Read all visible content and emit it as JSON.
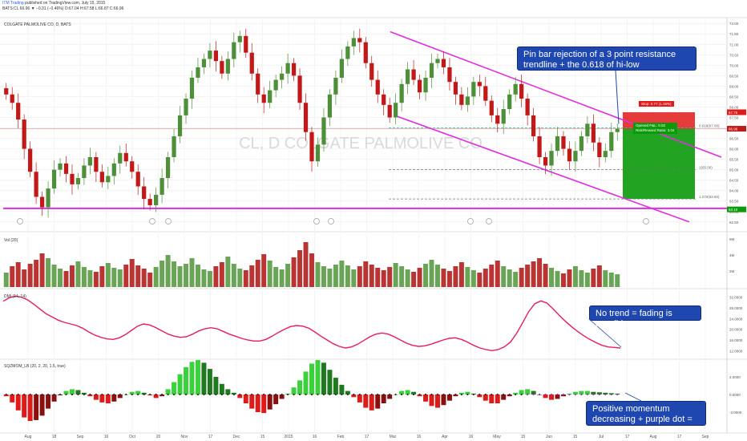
{
  "header": {
    "brand": "ITM Trading",
    "published": "published on TradingView.com, July 15, 2015",
    "quote": "BATS:CL 66.96 ▼ −0.31 (−0.46%) O:67.04 H:67.58 L:66.87 C:66.96"
  },
  "price_panel": {
    "title": "COLGATE PALMOLIVE CO, D, BATS",
    "watermark": "CL, D  COLGATE PALMOLIVE CO"
  },
  "volume_panel": {
    "title": "Vol (20)"
  },
  "dmi_panel": {
    "title": "DMI (14, 14)"
  },
  "sqz_panel": {
    "title": "SQZMOM_LB (20, 2, 20, 1.5, true)"
  },
  "callouts": {
    "pin_bar": "Pin bar rejection of a 3 point resistance trendline + the 0.618 of hi-low",
    "no_trend": "No trend = fading is possible",
    "momentum": "Positive momentum decreasing + purple dot = squeeze"
  },
  "position_tool": {
    "stop": "Stop: 0.77 (1.15%)",
    "opened": "Opened P&L: 0.02",
    "ratio": "Risk/Reward Ratio: 3.04"
  },
  "fib_labels": [
    "0.618(67.00)",
    "1(65.00)",
    "1.272(63.60)"
  ],
  "price_badges": [
    "67.75",
    "66.96",
    "63.10"
  ],
  "colors": {
    "up": "#4e8f3a",
    "down": "#c21818",
    "magenta": "#e02ee0",
    "dmi": "#e81c5a",
    "callout": "#1f47b0",
    "target": "#0a9a0a",
    "stop": "#e01919"
  },
  "chart_data": [
    {
      "type": "candlestick",
      "title": "COLGATE PALMOLIVE CO, D, BATS",
      "x_tick_labels": [
        "Aug",
        "18",
        "Sep",
        "16",
        "Oct",
        "20",
        "Nov",
        "17",
        "Dec",
        "15",
        "2015",
        "16",
        "Feb",
        "17",
        "Mar",
        "16",
        "Apr",
        "16",
        "May",
        "15",
        "Jun",
        "15",
        "Jul",
        "17",
        "Aug",
        "17",
        "Sep"
      ],
      "y_tick_labels": [
        "72.00",
        "71.50",
        "71.00",
        "70.50",
        "70.00",
        "69.50",
        "69.00",
        "68.50",
        "68.00",
        "67.50",
        "67.00",
        "66.50",
        "66.00",
        "65.50",
        "65.00",
        "64.50",
        "64.00",
        "63.50",
        "63.00",
        "62.50"
      ],
      "ylim": [
        62.3,
        72.2
      ],
      "closes": [
        68.6,
        68.2,
        67.4,
        66.0,
        64.9,
        63.7,
        63.2,
        64.1,
        65.0,
        65.3,
        64.8,
        64.3,
        64.6,
        65.2,
        65.6,
        64.9,
        64.4,
        64.7,
        65.3,
        65.8,
        65.4,
        64.9,
        64.2,
        63.6,
        63.3,
        63.8,
        64.6,
        65.6,
        66.6,
        67.6,
        68.4,
        69.4,
        69.9,
        70.3,
        70.7,
        70.2,
        69.6,
        70.3,
        71.1,
        71.4,
        70.6,
        69.6,
        68.6,
        68.2,
        68.8,
        69.3,
        69.6,
        70.1,
        69.5,
        68.2,
        66.8,
        65.4,
        66.2,
        67.5,
        68.6,
        69.4,
        70.3,
        70.9,
        71.3,
        71.1,
        70.1,
        69.3,
        68.6,
        68.1,
        67.5,
        68.2,
        69.1,
        69.8,
        69.3,
        68.7,
        69.4,
        70.1,
        70.3,
        69.9,
        69.2,
        68.6,
        68.1,
        68.5,
        69.2,
        69.0,
        68.3,
        67.6,
        67.2,
        67.9,
        68.6,
        69.1,
        68.4,
        67.6,
        66.6,
        65.6,
        65.2,
        65.9,
        66.6,
        66.0,
        65.4,
        65.9,
        66.6,
        67.2,
        66.3,
        65.6,
        65.9,
        66.8,
        66.96
      ],
      "volume_values_millions": [
        1.8,
        2.6,
        3.1,
        2.2,
        2.9,
        3.4,
        4.2,
        3.6,
        2.8,
        2.3,
        2.0,
        2.7,
        3.2,
        2.5,
        2.1,
        1.9,
        2.6,
        3.0,
        2.4,
        2.2,
        2.8,
        3.5,
        2.7,
        2.3,
        1.8,
        2.5,
        3.3,
        4.0,
        3.2,
        2.6,
        2.9,
        3.6,
        2.8,
        2.2,
        2.0,
        2.6,
        3.1,
        3.8,
        2.9,
        2.3,
        2.1,
        2.7,
        3.4,
        4.1,
        3.3,
        2.5,
        2.2,
        2.9,
        3.7,
        4.6,
        5.6,
        4.2,
        3.1,
        2.6,
        2.3,
        2.8,
        3.3,
        2.7,
        2.2,
        2.6,
        3.2,
        2.8,
        2.4,
        2.1,
        2.5,
        3.0,
        2.6,
        2.2,
        1.9,
        2.4,
        2.9,
        3.4,
        2.8,
        2.3,
        2.0,
        2.6,
        3.1,
        2.5,
        2.1,
        1.8,
        2.3,
        2.8,
        3.3,
        2.6,
        2.2,
        1.9,
        2.4,
        2.8,
        3.2,
        3.6,
        2.9,
        2.4,
        2.0,
        1.7,
        2.2,
        2.6,
        2.1,
        1.8,
        2.3,
        2.7,
        2.1,
        1.8,
        1.6
      ],
      "volume_y_ticks": [
        "6M",
        "4M",
        "2M"
      ],
      "dmi_values": [
        30.5,
        31.8,
        32.4,
        32.0,
        31.0,
        29.4,
        27.6,
        25.8,
        24.6,
        23.4,
        22.6,
        22.0,
        21.4,
        20.4,
        19.0,
        17.8,
        17.0,
        16.4,
        16.2,
        16.8,
        18.0,
        19.6,
        21.2,
        22.0,
        21.6,
        20.6,
        19.4,
        18.2,
        17.4,
        17.0,
        17.2,
        18.2,
        19.4,
        20.2,
        20.6,
        20.2,
        19.2,
        18.2,
        17.4,
        16.6,
        16.0,
        15.6,
        15.6,
        16.2,
        17.4,
        18.8,
        20.0,
        21.0,
        21.4,
        21.2,
        20.4,
        19.0,
        17.4,
        16.0,
        14.6,
        13.6,
        13.0,
        13.4,
        14.4,
        15.8,
        17.2,
        18.2,
        18.6,
        18.2,
        17.2,
        16.0,
        14.8,
        14.0,
        13.6,
        13.8,
        14.4,
        15.2,
        16.0,
        16.6,
        16.8,
        16.2,
        15.2,
        14.0,
        13.0,
        12.4,
        12.0,
        12.4,
        13.4,
        15.2,
        18.4,
        22.4,
        26.6,
        29.6,
        30.6,
        29.8,
        27.6,
        25.2,
        23.0,
        21.0,
        19.2,
        17.6,
        16.2,
        15.0,
        14.0,
        13.4,
        13.2,
        13.0
      ],
      "dmi_y_ticks": [
        "32.0000",
        "28.0000",
        "24.0000",
        "20.0000",
        "16.0000",
        "12.0000"
      ],
      "sqz_values": [
        -0.2,
        -0.9,
        -1.8,
        -2.6,
        -3.0,
        -2.9,
        -2.4,
        -1.6,
        -0.8,
        -0.1,
        0.4,
        0.6,
        0.5,
        0.2,
        -0.2,
        -0.6,
        -0.9,
        -1.0,
        -0.8,
        -0.4,
        0.0,
        0.3,
        0.4,
        0.2,
        -0.1,
        -0.4,
        -0.2,
        0.6,
        1.4,
        2.3,
        3.1,
        3.7,
        3.9,
        3.6,
        2.9,
        2.0,
        1.2,
        0.6,
        0.2,
        -0.4,
        -1.0,
        -1.6,
        -2.0,
        -2.1,
        -1.7,
        -1.1,
        -0.5,
        0.1,
        0.8,
        1.6,
        2.6,
        3.5,
        3.9,
        3.6,
        2.8,
        1.9,
        1.1,
        0.4,
        -0.3,
        -0.9,
        -1.5,
        -1.8,
        -1.6,
        -1.0,
        -0.5,
        0.0,
        0.4,
        0.5,
        0.3,
        -0.2,
        -0.8,
        -1.3,
        -1.5,
        -1.2,
        -0.7,
        -0.2,
        0.2,
        0.3,
        0.1,
        -0.3,
        -0.7,
        -1.0,
        -1.0,
        -0.6,
        -0.2,
        0.2,
        0.5,
        0.6,
        0.4,
        0.0,
        -0.4,
        -0.6,
        -0.5,
        -0.2,
        0.1,
        0.3,
        0.4,
        0.4,
        0.3,
        0.25,
        0.2,
        0.15,
        0.1
      ],
      "sqz_y_ticks": [
        "2.0000",
        "0.0000",
        "-2.0000"
      ]
    }
  ]
}
